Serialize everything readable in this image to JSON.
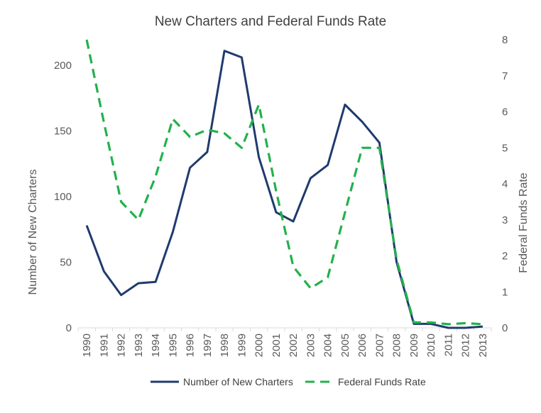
{
  "chart_data": {
    "type": "line",
    "title": "New Charters and Federal Funds Rate",
    "x": [
      "1990",
      "1991",
      "1992",
      "1993",
      "1994",
      "1995",
      "1996",
      "1997",
      "1998",
      "1999",
      "2000",
      "2001",
      "2002",
      "2003",
      "2004",
      "2005",
      "2006",
      "2007",
      "2008",
      "2009",
      "2010",
      "2011",
      "2012",
      "2013"
    ],
    "y_left": {
      "label": "Number of New Charters",
      "range": [
        0,
        220
      ],
      "ticks": [
        "0",
        "50",
        "100",
        "150",
        "200"
      ]
    },
    "y_right": {
      "label": "Federal Funds Rate",
      "range": [
        0,
        8
      ],
      "ticks": [
        "0",
        "1",
        "2",
        "3",
        "4",
        "5",
        "6",
        "7",
        "8"
      ]
    },
    "series": [
      {
        "name": "Number of New Charters",
        "axis": "left",
        "color": "#1f3b6e",
        "style": "solid",
        "values": [
          78,
          43,
          25,
          34,
          35,
          73,
          122,
          134,
          211,
          206,
          130,
          88,
          81,
          114,
          124,
          170,
          157,
          141,
          50,
          3,
          3,
          0,
          0,
          1
        ]
      },
      {
        "name": "Federal Funds Rate",
        "axis": "right",
        "color": "#22b14c",
        "style": "dashed",
        "values": [
          8.0,
          5.7,
          3.5,
          3.0,
          4.2,
          5.8,
          5.3,
          5.5,
          5.4,
          5.0,
          6.2,
          3.8,
          1.7,
          1.1,
          1.4,
          3.2,
          5.0,
          5.0,
          1.9,
          0.15,
          0.15,
          0.1,
          0.13,
          0.1
        ]
      }
    ],
    "grid": false,
    "legend": "bottom"
  }
}
